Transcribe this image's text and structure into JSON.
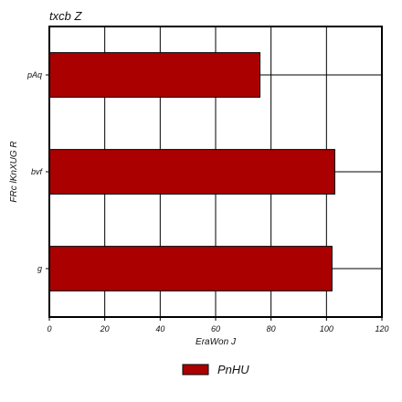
{
  "chart_data": {
    "type": "bar",
    "orientation": "horizontal",
    "title": "txcb Z",
    "xlabel": "EraWon J",
    "ylabel": "FRc lKnXUG R",
    "categories": [
      "pAq",
      "bvf",
      "g"
    ],
    "series": [
      {
        "name": "PnHU",
        "values": [
          76,
          103,
          102
        ],
        "color": "#aa0000"
      }
    ],
    "xlim": [
      0,
      120
    ],
    "xticks": [
      "0",
      "20",
      "40",
      "60",
      "80",
      "100",
      "120"
    ],
    "grid": true,
    "legend_position": "bottom-center"
  }
}
